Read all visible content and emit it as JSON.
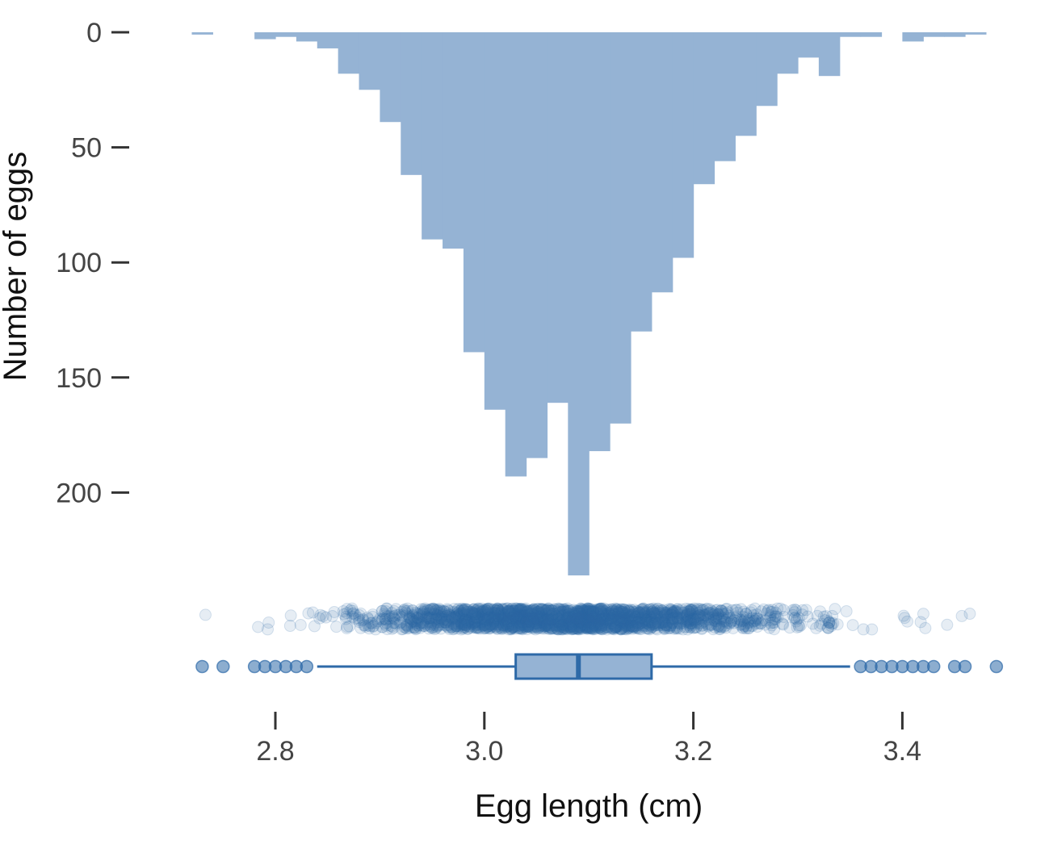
{
  "chart_data": {
    "type": "histogram",
    "orientation": "inverted",
    "title": "",
    "xlabel": "Egg length (cm)",
    "ylabel": "Number of eggs",
    "xlim": [
      2.72,
      3.49
    ],
    "ylim": [
      0,
      236
    ],
    "x_ticks": [
      2.8,
      3.0,
      3.2,
      3.4
    ],
    "x_tick_labels": [
      "2.8",
      "3.0",
      "3.2",
      "3.4"
    ],
    "y_ticks": [
      0,
      50,
      100,
      150,
      200
    ],
    "y_tick_labels": [
      "0",
      "50",
      "100",
      "150",
      "200"
    ],
    "bin_width": 0.02,
    "bins": {
      "x0": [
        2.72,
        2.76,
        2.78,
        2.8,
        2.82,
        2.84,
        2.86,
        2.88,
        2.9,
        2.92,
        2.94,
        2.96,
        2.98,
        3.0,
        3.02,
        3.04,
        3.06,
        3.08,
        3.1,
        3.12,
        3.14,
        3.16,
        3.18,
        3.2,
        3.22,
        3.24,
        3.26,
        3.28,
        3.3,
        3.32,
        3.34,
        3.36,
        3.4,
        3.42,
        3.44,
        3.46
      ],
      "counts": [
        1,
        0,
        3,
        2,
        4,
        7,
        18,
        25,
        39,
        62,
        90,
        94,
        139,
        164,
        193,
        185,
        161,
        236,
        182,
        170,
        130,
        113,
        98,
        66,
        56,
        45,
        32,
        18,
        11,
        19,
        2,
        2,
        4,
        2,
        2,
        1
      ]
    },
    "boxplot": {
      "q1": 3.03,
      "median": 3.09,
      "q3": 3.16,
      "whisker_low": 2.84,
      "whisker_high": 3.35,
      "outliers": [
        2.73,
        2.75,
        2.78,
        2.79,
        2.8,
        2.81,
        2.82,
        2.83,
        3.36,
        3.37,
        3.38,
        3.39,
        3.4,
        3.41,
        3.42,
        3.43,
        3.45,
        3.46,
        3.49
      ]
    },
    "colors": {
      "histogram_fill": "#95b3d4",
      "point": "#2e6aa8",
      "box_fill": "#95b3d4",
      "box_stroke": "#2e6aa8",
      "tick_text": "#444444",
      "title_text": "#111111"
    },
    "grid": false,
    "legend": "none"
  }
}
